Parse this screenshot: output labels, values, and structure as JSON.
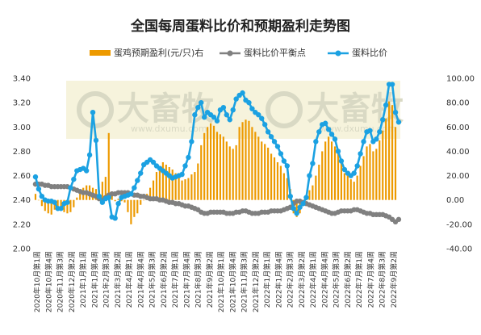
{
  "chart_data": {
    "type": "bar+line",
    "title": "全国每周蛋料比价和预期盈利走势图",
    "watermark": {
      "logo_text": "大畜牧",
      "url": "www.dxumu.com"
    },
    "legend": {
      "position": "top",
      "entries": [
        "蛋鸡预期盈利(元/只)右",
        "蛋料比价平衡点",
        "蛋料比价"
      ]
    },
    "colors": {
      "profit": "#ED9A00",
      "balance": "#808080",
      "ratio": "#1BA1E2",
      "watermark_bg": "#F6F3DC"
    },
    "y_left": {
      "min": 2.0,
      "max": 3.4,
      "step": 0.2,
      "tick_labels": [
        "2.00",
        "2.20",
        "2.40",
        "2.60",
        "2.80",
        "3.00",
        "3.20",
        "3.40"
      ]
    },
    "y_right": {
      "min": -40,
      "max": 100,
      "step": 20,
      "tick_labels": [
        "-40.00",
        "-20.00",
        "0.00",
        "20.00",
        "40.00",
        "60.00",
        "80.00",
        "100.00"
      ]
    },
    "x_labels": [
      "2020年10月第1周",
      "2020年10月第4周",
      "2020年11月第3周",
      "2020年12月第2周",
      "2021年1月第1周",
      "2021年1月第4周",
      "2021年2月第3周",
      "2021年3月第2周",
      "2021年4月第1周",
      "2021年4月第4周",
      "2021年5月第3周",
      "2021年6月第2周",
      "2021年7月第1周",
      "2021年7月第4周",
      "2021年8月第3周",
      "2021年9月第2周",
      "2021年10月第1周",
      "2021年10月第4周",
      "2021年11月第3周",
      "2021年12月第2周",
      "2022年1月第1周",
      "2022年1月第4周",
      "2022年2月第3周",
      "2022年3月第2周",
      "2022年4月第1周",
      "2022年4月第4周",
      "2022年5月第3周",
      "2022年6月第2周",
      "2022年7月第1周",
      "2022年7月第4周",
      "2022年8月第3周",
      "2022年9月第2周"
    ],
    "series": [
      {
        "name": "蛋鸡预期盈利(元/只)右",
        "kind": "bar",
        "axis": "right",
        "values": [
          5,
          0,
          -5,
          -9,
          -11,
          -12,
          -8,
          -7,
          -5,
          -10,
          -11,
          -10,
          -6,
          2,
          6,
          10,
          12,
          12,
          10,
          9,
          8,
          15,
          19,
          55,
          7,
          -1,
          1,
          -1,
          -2,
          -10,
          -20,
          -14,
          -11,
          -4,
          0,
          5,
          10,
          16,
          23,
          28,
          31,
          29,
          27,
          25,
          22,
          18,
          16,
          17,
          18,
          21,
          23,
          30,
          45,
          55,
          60,
          63,
          61,
          56,
          54,
          52,
          48,
          44,
          42,
          45,
          60,
          64,
          66,
          65,
          60,
          56,
          52,
          48,
          46,
          43,
          38,
          35,
          31,
          28,
          22,
          18,
          9,
          -11,
          -14,
          -11,
          -5,
          0,
          8,
          12,
          20,
          29,
          40,
          48,
          52,
          48,
          44,
          40,
          31,
          22,
          20,
          17,
          15,
          20,
          28,
          36,
          44,
          46,
          40,
          42,
          49,
          57,
          67,
          81,
          78,
          60
        ]
      },
      {
        "name": "蛋料比价平衡点",
        "kind": "line",
        "axis": "left",
        "values": [
          2.53,
          2.53,
          2.53,
          2.52,
          2.52,
          2.51,
          2.51,
          2.51,
          2.51,
          2.51,
          2.51,
          2.5,
          2.49,
          2.48,
          2.47,
          2.46,
          2.46,
          2.45,
          2.44,
          2.43,
          2.41,
          2.4,
          2.42,
          2.44,
          2.45,
          2.45,
          2.46,
          2.46,
          2.46,
          2.46,
          2.45,
          2.44,
          2.44,
          2.43,
          2.43,
          2.42,
          2.41,
          2.41,
          2.41,
          2.4,
          2.4,
          2.39,
          2.38,
          2.38,
          2.37,
          2.37,
          2.36,
          2.35,
          2.35,
          2.34,
          2.33,
          2.32,
          2.3,
          2.29,
          2.29,
          2.3,
          2.3,
          2.3,
          2.3,
          2.3,
          2.29,
          2.29,
          2.29,
          2.3,
          2.3,
          2.31,
          2.31,
          2.3,
          2.29,
          2.29,
          2.29,
          2.3,
          2.3,
          2.3,
          2.31,
          2.31,
          2.31,
          2.31,
          2.32,
          2.33,
          2.34,
          2.37,
          2.39,
          2.39,
          2.38,
          2.37,
          2.36,
          2.35,
          2.34,
          2.33,
          2.32,
          2.31,
          2.3,
          2.29,
          2.29,
          2.3,
          2.31,
          2.31,
          2.31,
          2.31,
          2.32,
          2.32,
          2.31,
          2.3,
          2.29,
          2.29,
          2.28,
          2.28,
          2.28,
          2.28,
          2.27,
          2.26,
          2.24,
          2.22,
          2.24
        ]
      },
      {
        "name": "蛋料比价",
        "kind": "line",
        "axis": "left",
        "values": [
          2.59,
          2.49,
          2.43,
          2.4,
          2.39,
          2.39,
          2.38,
          2.33,
          2.33,
          2.37,
          2.38,
          2.5,
          2.57,
          2.64,
          2.65,
          2.66,
          2.64,
          2.77,
          3.12,
          2.89,
          2.43,
          2.38,
          2.41,
          2.42,
          2.26,
          2.25,
          2.37,
          2.42,
          2.43,
          2.44,
          2.45,
          2.5,
          2.56,
          2.62,
          2.69,
          2.71,
          2.73,
          2.71,
          2.68,
          2.66,
          2.64,
          2.62,
          2.6,
          2.58,
          2.59,
          2.6,
          2.61,
          2.68,
          2.75,
          2.88,
          3.1,
          3.16,
          3.2,
          3.08,
          3.12,
          3.1,
          3.08,
          3.05,
          3.14,
          3.16,
          3.1,
          3.06,
          3.14,
          3.23,
          3.26,
          3.28,
          3.22,
          3.2,
          3.15,
          3.12,
          3.1,
          3.07,
          3.02,
          2.96,
          2.92,
          2.88,
          2.84,
          2.78,
          2.72,
          2.68,
          2.43,
          2.33,
          2.29,
          2.34,
          2.37,
          2.42,
          2.6,
          2.7,
          2.88,
          2.96,
          3.02,
          3.03,
          2.98,
          2.94,
          2.9,
          2.8,
          2.72,
          2.65,
          2.62,
          2.6,
          2.62,
          2.68,
          2.78,
          2.88,
          2.96,
          2.97,
          2.88,
          2.9,
          2.96,
          3.06,
          3.18,
          3.35,
          3.35,
          3.12,
          3.04
        ]
      }
    ]
  }
}
